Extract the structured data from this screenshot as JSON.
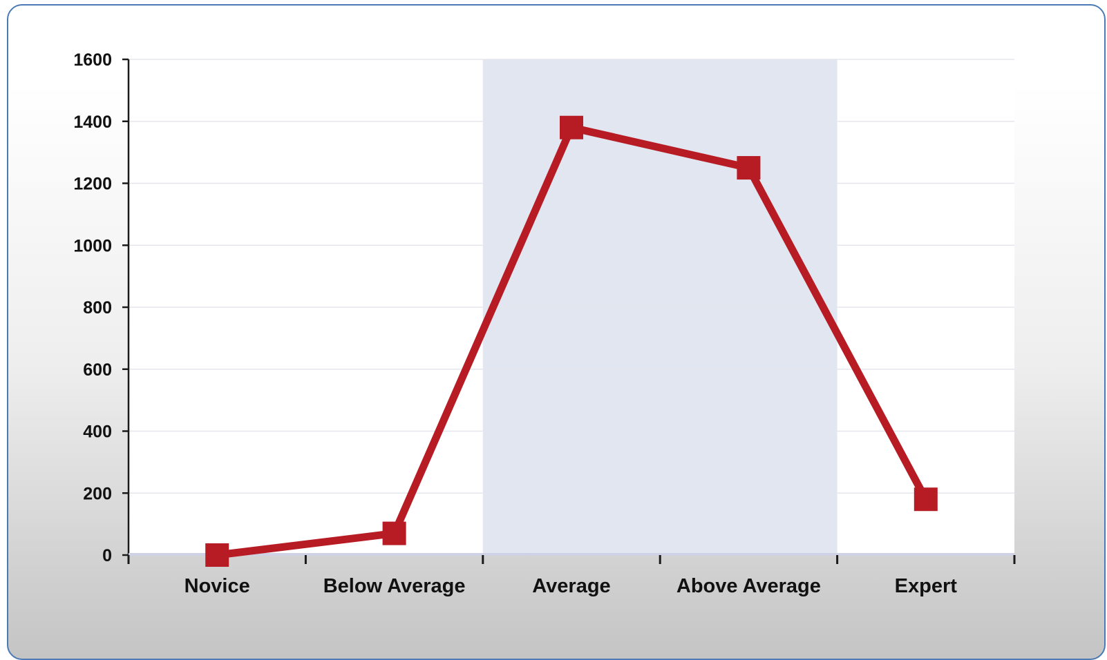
{
  "chart_data": {
    "type": "line",
    "title": "",
    "xlabel": "",
    "ylabel": "",
    "categories": [
      "Novice",
      "Below Average",
      "Average",
      "Above Average",
      "Expert"
    ],
    "series": [
      {
        "values": [
          0,
          70,
          1380,
          1250,
          180
        ]
      }
    ],
    "ylim": [
      0,
      1600
    ],
    "yticks": [
      "0",
      "200",
      "400",
      "600",
      "800",
      "1000",
      "1200",
      "1400",
      "1600"
    ],
    "highlight_range": [
      "Average",
      "Above Average"
    ],
    "grid": true,
    "legend": "none",
    "marker": "square",
    "colors": {
      "line": "#b71c25",
      "highlight": "#e1e6f0",
      "frame_border": "#4a79b6",
      "gridline": "#e6e6ee"
    }
  }
}
